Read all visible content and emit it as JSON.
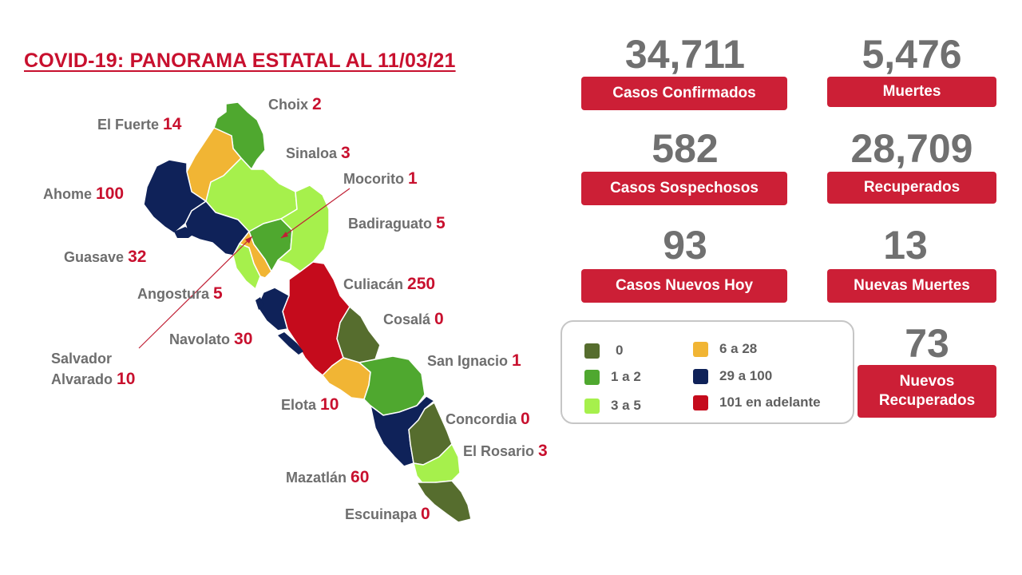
{
  "title": "COVID-19: PANORAMA ESTATAL AL 11/03/21",
  "stats": {
    "confirmados": {
      "value": "34,711",
      "label": "Casos Confirmados"
    },
    "muertes": {
      "value": "5,476",
      "label": "Muertes"
    },
    "sospechosos": {
      "value": "582",
      "label": "Casos Sospechosos"
    },
    "recuperados": {
      "value": "28,709",
      "label": "Recuperados"
    },
    "nuevos_hoy": {
      "value": "93",
      "label": "Casos Nuevos Hoy"
    },
    "nuevas_muertes": {
      "value": "13",
      "label": "Nuevas Muertes"
    },
    "nuevos_recuperados": {
      "value": "73",
      "label": "Nuevos Recuperados"
    }
  },
  "legend": {
    "items": [
      {
        "label": "0",
        "color": "#566d2e"
      },
      {
        "label": "1 a 2",
        "color": "#4fa82f"
      },
      {
        "label": "3 a 5",
        "color": "#a6f04c"
      },
      {
        "label": "6 a 28",
        "color": "#f1b534"
      },
      {
        "label": "29 a 100",
        "color": "#0f2259"
      },
      {
        "label": "101 en adelante",
        "color": "#c50b1c"
      }
    ]
  },
  "municipalities": [
    {
      "name": "Choix",
      "count": "2",
      "color": "#4fa82f"
    },
    {
      "name": "El Fuerte",
      "count": "14",
      "color": "#f1b534"
    },
    {
      "name": "Sinaloa",
      "count": "3",
      "color": "#a6f04c"
    },
    {
      "name": "Mocorito",
      "count": "1",
      "color": "#4fa82f"
    },
    {
      "name": "Ahome",
      "count": "100",
      "color": "#0f2259"
    },
    {
      "name": "Badiraguato",
      "count": "5",
      "color": "#a6f04c"
    },
    {
      "name": "Guasave",
      "count": "32",
      "color": "#0f2259"
    },
    {
      "name": "Angostura",
      "count": "5",
      "color": "#a6f04c"
    },
    {
      "name": "Culiacán",
      "count": "250",
      "color": "#c50b1c"
    },
    {
      "name": "Cosalá",
      "count": "0",
      "color": "#566d2e"
    },
    {
      "name": "Navolato",
      "count": "30",
      "color": "#0f2259"
    },
    {
      "name": "Salvador Alvarado",
      "name_line1": "Salvador",
      "name_line2": "Alvarado",
      "count": "10",
      "color": "#f1b534"
    },
    {
      "name": "San Ignacio",
      "count": "1",
      "color": "#4fa82f"
    },
    {
      "name": "Elota",
      "count": "10",
      "color": "#f1b534"
    },
    {
      "name": "Concordia",
      "count": "0",
      "color": "#566d2e"
    },
    {
      "name": "El Rosario",
      "count": "3",
      "color": "#a6f04c"
    },
    {
      "name": "Mazatlán",
      "count": "60",
      "color": "#0f2259"
    },
    {
      "name": "Escuinapa",
      "count": "0",
      "color": "#566d2e"
    }
  ]
}
